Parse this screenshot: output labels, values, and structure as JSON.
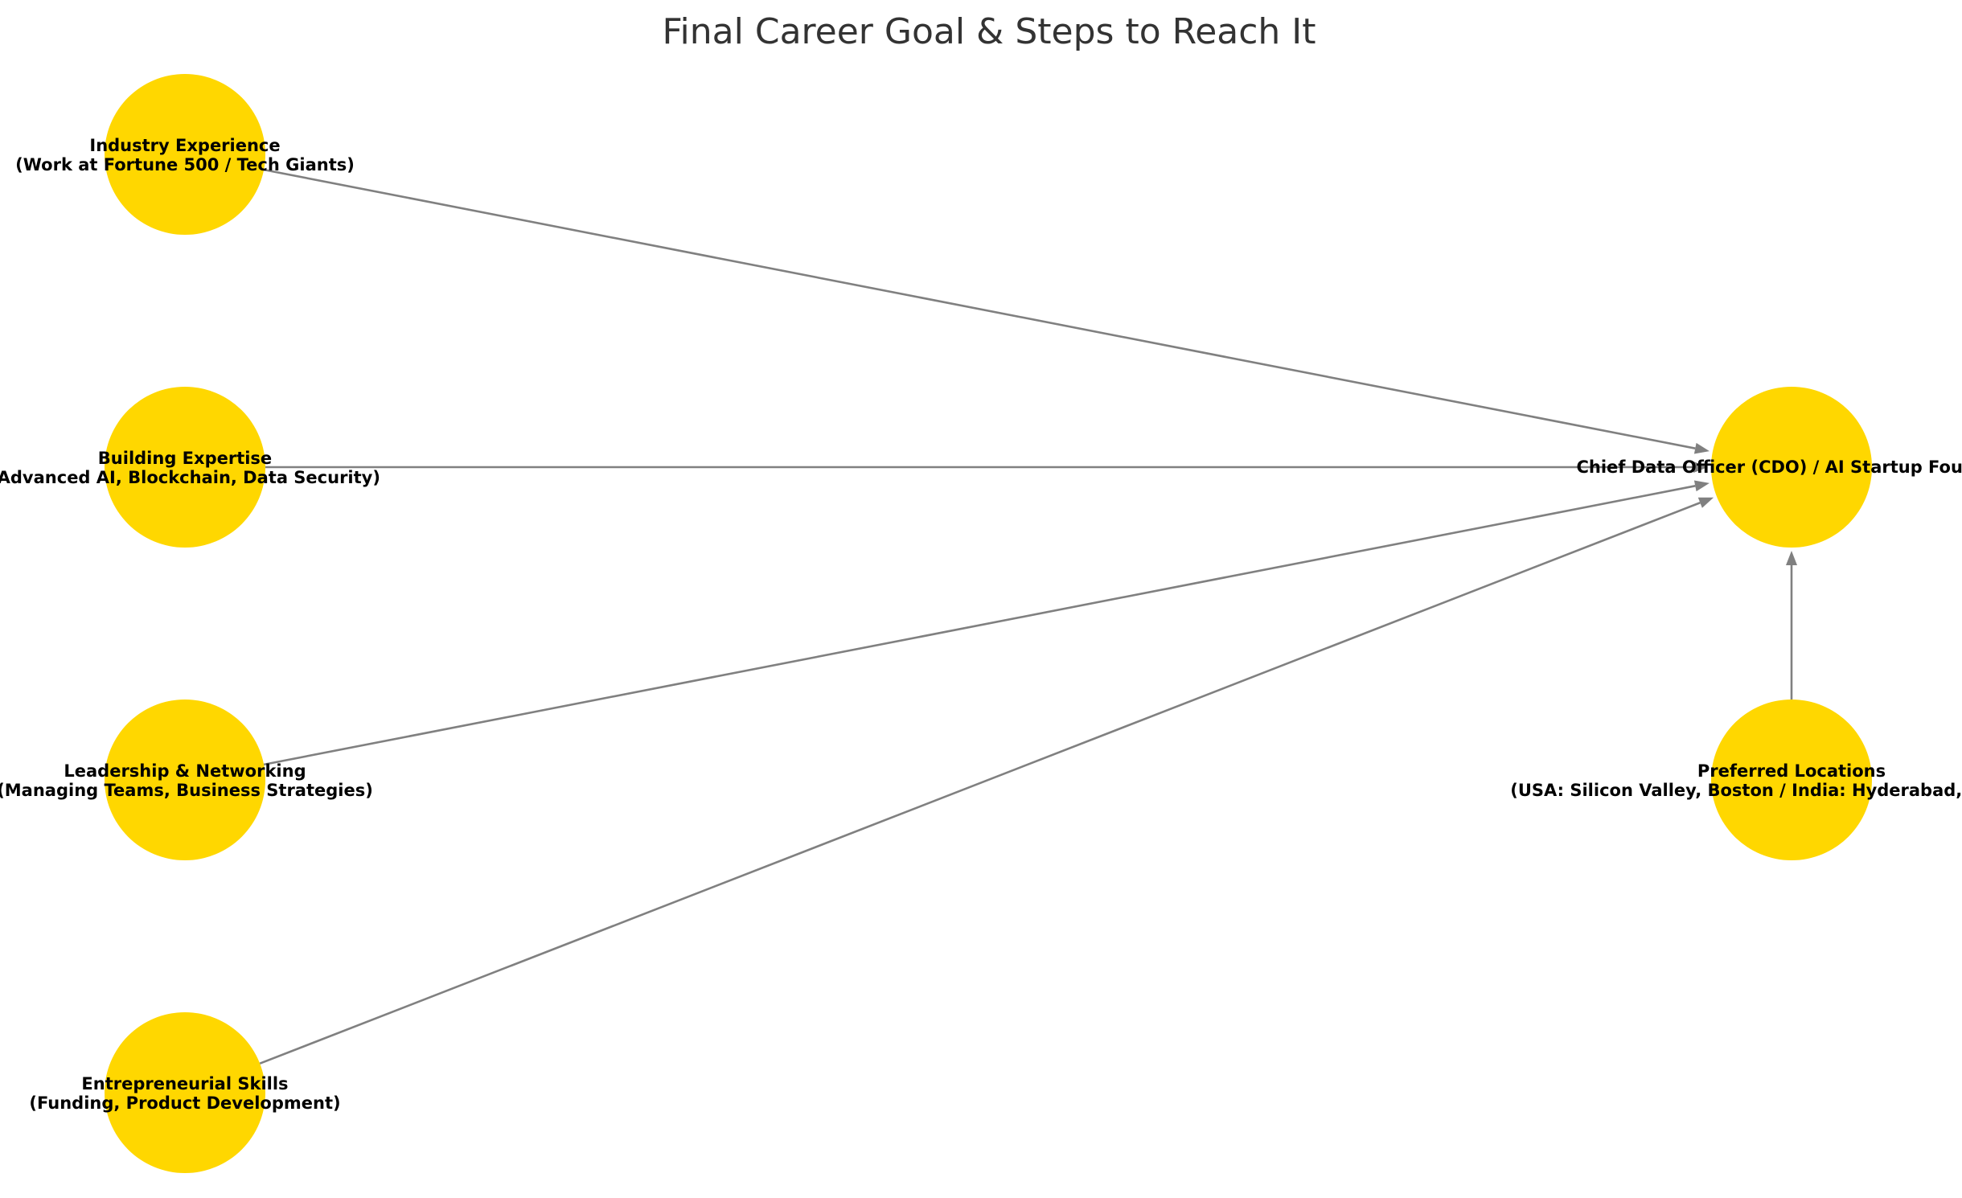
{
  "title": "Final Career Goal & Steps to Reach It",
  "colors": {
    "node_fill": "#FFD700",
    "edge": "#808080",
    "title": "#333333",
    "label": "#000000",
    "background": "#ffffff"
  },
  "nodes": [
    {
      "id": "industry",
      "line1": "Industry Experience",
      "line2": "(Work at Fortune 500 / Tech Giants)"
    },
    {
      "id": "expertise",
      "line1": "Building Expertise",
      "line2": "(Advanced AI, Blockchain, Data Security)"
    },
    {
      "id": "leadership",
      "line1": "Leadership & Networking",
      "line2": "(Managing Teams, Business Strategies)"
    },
    {
      "id": "entrepreneur",
      "line1": "Entrepreneurial Skills",
      "line2": "(Funding, Product Development)"
    },
    {
      "id": "goal",
      "line1": "",
      "line2": "Chief Data Officer (CDO) / AI Startup Founder"
    },
    {
      "id": "locations",
      "line1": "Preferred Locations",
      "line2": "(USA: Silicon Valley, Boston / India: Hyderabad, Bangalore)"
    }
  ],
  "edges": [
    {
      "from": "industry",
      "to": "goal"
    },
    {
      "from": "expertise",
      "to": "goal"
    },
    {
      "from": "leadership",
      "to": "goal"
    },
    {
      "from": "entrepreneur",
      "to": "goal"
    },
    {
      "from": "locations",
      "to": "goal"
    }
  ]
}
